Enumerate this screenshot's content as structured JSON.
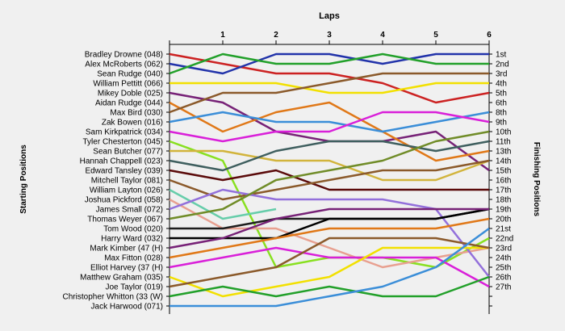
{
  "chart_data": {
    "type": "line",
    "title": "Laps",
    "ylabel": "Starting Positions",
    "ylabel_right": "Finishing Positions",
    "x": [
      0,
      1,
      2,
      3,
      4,
      5,
      6
    ],
    "x_tick_labels": [
      "1",
      "2",
      "3",
      "4",
      "5",
      "6"
    ],
    "finishing_labels": [
      "1st",
      "2nd",
      "3rd",
      "4th",
      "5th",
      "6th",
      "8th",
      "9th",
      "10th",
      "11th",
      "13th",
      "14th",
      "15th",
      "16th",
      "17th",
      "18th",
      "19th",
      "20th",
      "21st",
      "22nd",
      "23rd",
      "24th",
      "25th",
      "26th",
      "27th"
    ],
    "grid": false,
    "series": [
      {
        "name": "Bradley Drowne (048)",
        "color": "#cc2222",
        "positions": [
          1,
          2,
          3,
          3,
          4,
          6,
          5
        ]
      },
      {
        "name": "Alex McRoberts (062)",
        "color": "#2233aa",
        "positions": [
          2,
          3,
          1,
          1,
          2,
          1,
          1
        ]
      },
      {
        "name": "Sean Rudge (040)",
        "color": "#22a02a",
        "positions": [
          3,
          1,
          2,
          2,
          1,
          2,
          2
        ]
      },
      {
        "name": "William Pettitt (066)",
        "color": "#f2e000",
        "positions": [
          4,
          4,
          4,
          5,
          5,
          4,
          4
        ]
      },
      {
        "name": "Mikey Doble (025)",
        "color": "#772277",
        "positions": [
          5,
          6,
          9,
          10,
          10,
          9,
          13
        ]
      },
      {
        "name": "Aidan Rudge (044)",
        "color": "#e07818",
        "positions": [
          6,
          9,
          7,
          6,
          9,
          12,
          11
        ]
      },
      {
        "name": "Max Bird (030)",
        "color": "#8b5a2b",
        "positions": [
          7,
          5,
          5,
          4,
          3,
          3,
          3
        ]
      },
      {
        "name": "Zak Bowen (016)",
        "color": "#3b8ed8",
        "positions": [
          8,
          7,
          8,
          8,
          9,
          8,
          7
        ]
      },
      {
        "name": "Sam Kirkpatrick (034)",
        "color": "#d920d9",
        "positions": [
          9,
          10,
          9,
          9,
          7,
          7,
          8
        ]
      },
      {
        "name": "Tyler Chesterton (045)",
        "color": "#88e020",
        "positions": [
          10,
          12,
          23,
          22,
          22,
          23,
          20
        ]
      },
      {
        "name": "Sean Butcher (077)",
        "color": "#d2b43c",
        "positions": [
          11,
          11,
          12,
          12,
          14,
          14,
          12
        ]
      },
      {
        "name": "Hannah Chappell (023)",
        "color": "#3f5f5f",
        "positions": [
          12,
          13,
          11,
          10,
          10,
          11,
          10
        ]
      },
      {
        "name": "Edward Tansley (039)",
        "color": "#5a0a0a",
        "positions": [
          13,
          14,
          13,
          15,
          15,
          15,
          15
        ]
      },
      {
        "name": "Mitchell Taylor (081)",
        "color": "#8b5a2b",
        "positions": [
          14,
          16,
          15,
          14,
          13,
          13,
          12
        ]
      },
      {
        "name": "William Layton (026)",
        "color": "#66cdaa",
        "positions": [
          15,
          18,
          17,
          null,
          null,
          null,
          null
        ]
      },
      {
        "name": "Joshua Pickford (058)",
        "color": "#e8a090",
        "positions": [
          16,
          19,
          19,
          21,
          23,
          22,
          21
        ]
      },
      {
        "name": "James Small (072)",
        "color": "#9370db",
        "positions": [
          17,
          15,
          16,
          16,
          16,
          17,
          24
        ]
      },
      {
        "name": "Thomas Weyer (067)",
        "color": "#708c28",
        "positions": [
          18,
          17,
          14,
          13,
          12,
          10,
          9
        ]
      },
      {
        "name": "Tom Wood (020)",
        "color": "#1e1e1e",
        "positions": [
          19,
          19,
          18,
          18,
          18,
          18,
          17
        ]
      },
      {
        "name": "Harry Ward (032)",
        "color": "#000000",
        "positions": [
          20,
          20,
          20,
          18,
          18,
          18,
          17
        ]
      },
      {
        "name": "Mark Kimber (47 (H)",
        "color": "#772277",
        "positions": [
          21,
          20,
          18,
          17,
          17,
          17,
          17
        ]
      },
      {
        "name": "Max Fitton (028)",
        "color": "#e07818",
        "positions": [
          22,
          21,
          20,
          19,
          19,
          19,
          18
        ]
      },
      {
        "name": "Elliot Harvey (37 (H)",
        "color": "#d920d9",
        "positions": [
          23,
          22,
          21,
          22,
          22,
          22,
          25
        ]
      },
      {
        "name": "Matthew Graham (035)",
        "color": "#f2e000",
        "positions": [
          24,
          26,
          25,
          24,
          21,
          21,
          21
        ]
      },
      {
        "name": "Joe Taylor (019)",
        "color": "#8b5a2b",
        "positions": [
          25,
          24,
          23,
          20,
          20,
          20,
          21
        ]
      },
      {
        "name": "Christopher Whitton (33 (W)",
        "color": "#22a02a",
        "positions": [
          26,
          25,
          26,
          25,
          26,
          26,
          24
        ]
      },
      {
        "name": "Jack Harwood (071)",
        "color": "#3b8ed8",
        "positions": [
          27,
          27,
          27,
          26,
          25,
          23,
          19
        ]
      }
    ]
  }
}
